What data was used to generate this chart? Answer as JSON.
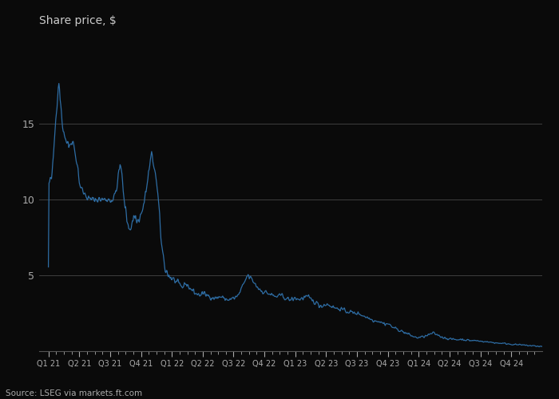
{
  "title": "Share price, $",
  "source": "Source: LSEG via markets.ft.com",
  "ylim": [
    0,
    20
  ],
  "yticks": [
    5,
    10,
    15
  ],
  "background_color": "#0a0a0a",
  "line_color": "#2e6da4",
  "grid_color": "#3a3a3a",
  "text_color": "#aaaaaa",
  "title_color": "#cccccc",
  "x_labels": [
    "Q1 21",
    "Q2 21",
    "Q3 21",
    "Q4 21",
    "Q1 22",
    "Q2 22",
    "Q3 22",
    "Q4 22",
    "Q1 23",
    "Q2 23",
    "Q3 23",
    "Q4 23",
    "Q1 24",
    "Q2 24",
    "Q3 24",
    "Q4 24"
  ]
}
